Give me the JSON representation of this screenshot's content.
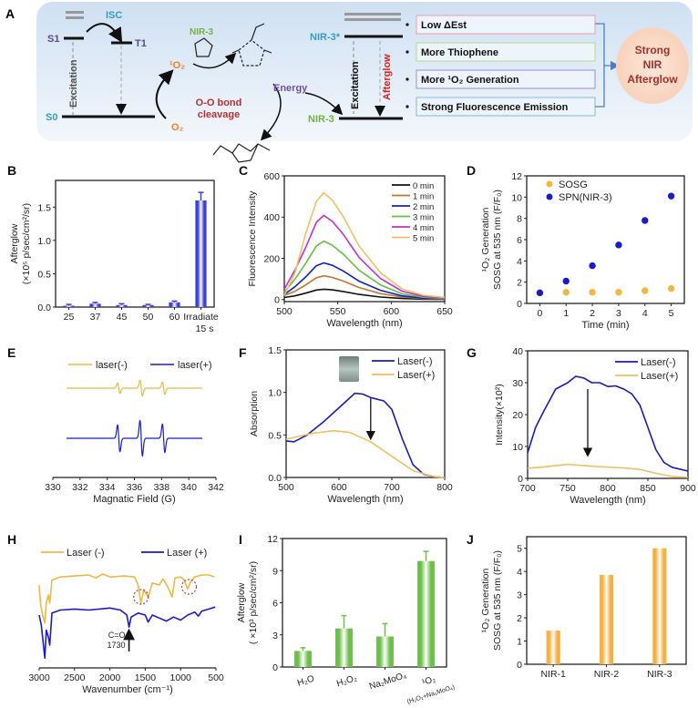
{
  "panel_a": {
    "label": "A",
    "s1": "S1",
    "t1": "T1",
    "s0": "S0",
    "isc": "ISC",
    "excitation": "Excitation",
    "nir3_top": "NIR-3",
    "singlet_oxygen": "¹O₂",
    "oxygen": "O₂",
    "oo_cleavage_line1": "O-O bond",
    "oo_cleavage_line2": "cleavage",
    "energy": "Energy",
    "nir3_excited": "NIR-3*",
    "nir3_ground": "NIR-3",
    "excitation2": "Excitation",
    "afterglow": "Afterglow",
    "features": [
      "Low ΔEst",
      "More Thiophene",
      "More ¹O₂ Generation",
      "Strong Fluorescence Emission"
    ],
    "feature_colors": [
      "#e8a0a8",
      "#b8d890",
      "#9a90c8",
      "#80b8d8"
    ],
    "result": [
      "Strong",
      "NIR",
      "Afterglow"
    ]
  },
  "chart_data": [
    {
      "panel": "B",
      "type": "bar",
      "categories": [
        "25",
        "37",
        "45",
        "50",
        "60",
        "Irradiate"
      ],
      "category_sublabels": [
        "",
        "",
        "",
        "",
        "",
        "15 s"
      ],
      "values": [
        0.02,
        0.05,
        0.03,
        0.03,
        0.07,
        1.6
      ],
      "errors": [
        0.02,
        0.02,
        0.02,
        0.01,
        0.02,
        0.12
      ],
      "ylabel": [
        "Afterglow",
        "(×10⁵ p/sec/cm²/sr)"
      ],
      "xlabel": "",
      "ylim": [
        0,
        1.9
      ],
      "yticks": [
        0.0,
        0.5,
        1.0,
        1.5
      ],
      "ytick_labels": [
        "0.0",
        "0.5",
        "1.0",
        "1.5"
      ],
      "color": "#3c3ce0"
    },
    {
      "panel": "C",
      "type": "line",
      "x": [
        500,
        510,
        520,
        530,
        537,
        545,
        555,
        570,
        590,
        610,
        630,
        650
      ],
      "series": [
        {
          "name": "0 min",
          "color": "#111111",
          "values": [
            10,
            18,
            31,
            46,
            50,
            47,
            39,
            25,
            12,
            5,
            2,
            1
          ]
        },
        {
          "name": "1 min",
          "color": "#c07830",
          "values": [
            20,
            40,
            71,
            106,
            115,
            107,
            90,
            58,
            29,
            12,
            5,
            2
          ]
        },
        {
          "name": "2 min",
          "color": "#1020c8",
          "values": [
            25,
            62,
            110,
            164,
            178,
            166,
            139,
            89,
            45,
            18,
            7,
            4
          ]
        },
        {
          "name": "3 min",
          "color": "#60c040",
          "values": [
            35,
            99,
            175,
            260,
            283,
            263,
            221,
            142,
            71,
            28,
            11,
            6
          ]
        },
        {
          "name": "4 min",
          "color": "#c030d0",
          "values": [
            50,
            143,
            253,
            375,
            408,
            379,
            318,
            204,
            102,
            41,
            16,
            8
          ]
        },
        {
          "name": "5 min",
          "color": "#f0c060",
          "values": [
            20,
            130,
            320,
            476,
            518,
            482,
            404,
            259,
            130,
            52,
            21,
            10
          ]
        }
      ],
      "xlabel": "Wavelength (nm)",
      "ylabel": [
        "Fluorescence Intensity"
      ],
      "xlim": [
        500,
        650
      ],
      "ylim": [
        -10,
        600
      ],
      "xticks": [
        500,
        550,
        600,
        650
      ],
      "yticks": [
        0,
        200,
        400,
        600
      ],
      "legend": "top-right"
    },
    {
      "panel": "D",
      "type": "scatter",
      "x": [
        0,
        1,
        2,
        3,
        4,
        5
      ],
      "series": [
        {
          "name": "SOSG",
          "color": "#f0b840",
          "values": [
            1.0,
            1.05,
            1.05,
            1.05,
            1.2,
            1.4
          ]
        },
        {
          "name": "SPN(NIR-3)",
          "color": "#1a1ad0",
          "values": [
            1.0,
            2.1,
            3.55,
            5.5,
            7.8,
            10.1
          ]
        }
      ],
      "xlabel": "Time (min)",
      "ylabel": [
        "¹O₂ Generation",
        "SOSG at 535 nm (F/F₀)"
      ],
      "xlim": [
        -0.5,
        5.5
      ],
      "ylim": [
        0,
        12
      ],
      "xticks": [
        0,
        1,
        2,
        3,
        4,
        5
      ],
      "yticks": [
        0,
        2,
        4,
        6,
        8,
        10,
        12
      ],
      "legend": "top-left"
    },
    {
      "panel": "E",
      "type": "line",
      "peaks_G": [
        334.85,
        336.5,
        338.15
      ],
      "series": [
        {
          "name": "laser(-)",
          "color": "#f0b840",
          "amplitudes": [
            0.6,
            0.9,
            0.7
          ]
        },
        {
          "name": "laser(+)",
          "color": "#1a1ad0",
          "amplitudes": [
            1.5,
            2.0,
            1.6
          ]
        }
      ],
      "xlabel": "Magnatic Field (G)",
      "xlim": [
        330,
        342
      ],
      "xticks": [
        330,
        332,
        334,
        336,
        338,
        340,
        342
      ],
      "legend": "top"
    },
    {
      "panel": "F",
      "type": "line",
      "series": [
        {
          "name": "Laser(-)",
          "color": "#1a1ab8",
          "points": [
            [
              500,
              0.43
            ],
            [
              515,
              0.42
            ],
            [
              540,
              0.5
            ],
            [
              570,
              0.65
            ],
            [
              600,
              0.82
            ],
            [
              630,
              0.99
            ],
            [
              645,
              0.98
            ],
            [
              660,
              0.94
            ],
            [
              685,
              0.9
            ],
            [
              700,
              0.8
            ],
            [
              720,
              0.45
            ],
            [
              740,
              0.15
            ],
            [
              760,
              0.04
            ],
            [
              780,
              0.01
            ],
            [
              800,
              0
            ]
          ]
        },
        {
          "name": "Laser(+)",
          "color": "#f0c060",
          "points": [
            [
              500,
              0.45
            ],
            [
              550,
              0.52
            ],
            [
              590,
              0.55
            ],
            [
              620,
              0.53
            ],
            [
              660,
              0.42
            ],
            [
              700,
              0.25
            ],
            [
              740,
              0.08
            ],
            [
              780,
              0.01
            ],
            [
              800,
              0
            ]
          ]
        }
      ],
      "arrow": {
        "x": 660,
        "from": 0.93,
        "to": 0.45
      },
      "xlabel": "Wavelength (nm)",
      "ylabel": [
        "Absorption"
      ],
      "xlim": [
        500,
        800
      ],
      "ylim": [
        0,
        1.5
      ],
      "xticks": [
        500,
        600,
        700,
        800
      ],
      "yticks": [
        0.0,
        0.5,
        1.0,
        1.5
      ],
      "ytick_labels": [
        "0.0",
        "0.5",
        "1.0",
        "1.5"
      ],
      "legend": "top-right"
    },
    {
      "panel": "G",
      "type": "line",
      "series": [
        {
          "name": "Laser(-)",
          "color": "#1a1ab8",
          "points": [
            [
              700,
              8
            ],
            [
              710,
              16
            ],
            [
              720,
              21
            ],
            [
              735,
              28
            ],
            [
              750,
              30
            ],
            [
              760,
              32
            ],
            [
              770,
              31.5
            ],
            [
              780,
              30
            ],
            [
              790,
              30
            ],
            [
              800,
              28.8
            ],
            [
              810,
              29
            ],
            [
              820,
              28
            ],
            [
              830,
              26.5
            ],
            [
              840,
              23
            ],
            [
              850,
              16
            ],
            [
              860,
              9
            ],
            [
              870,
              5
            ],
            [
              880,
              3.5
            ],
            [
              900,
              2.3
            ]
          ]
        },
        {
          "name": "Laser(+)",
          "color": "#f0c060",
          "points": [
            [
              700,
              3.2
            ],
            [
              720,
              3.6
            ],
            [
              750,
              4.4
            ],
            [
              780,
              3.8
            ],
            [
              820,
              3.3
            ],
            [
              840,
              2.8
            ],
            [
              860,
              1.6
            ],
            [
              880,
              0.6
            ],
            [
              900,
              0.3
            ]
          ]
        }
      ],
      "arrow": {
        "x": 775,
        "from": 28,
        "to": 7
      },
      "xlabel": "Wavelength (nm)",
      "ylabel": [
        "Intensity(×10²)"
      ],
      "xlim": [
        700,
        900
      ],
      "ylim": [
        0,
        40
      ],
      "xticks": [
        700,
        750,
        800,
        850,
        900
      ],
      "yticks": [
        0,
        10,
        20,
        30,
        40
      ],
      "legend": "top-right"
    },
    {
      "panel": "H",
      "type": "line",
      "series": [
        {
          "name": "Laser (-)",
          "color": "#f0b840",
          "points": [
            [
              3000,
              0.8
            ],
            [
              2980,
              0.6
            ],
            [
              2950,
              0.5
            ],
            [
              2920,
              0.42
            ],
            [
              2900,
              0.62
            ],
            [
              2870,
              0.7
            ],
            [
              2850,
              0.62
            ],
            [
              2820,
              0.85
            ],
            [
              2700,
              0.88
            ],
            [
              2500,
              0.89
            ],
            [
              2300,
              0.9
            ],
            [
              2200,
              0.87
            ],
            [
              2100,
              0.91
            ],
            [
              2000,
              0.88
            ],
            [
              1800,
              0.89
            ],
            [
              1650,
              0.88
            ],
            [
              1600,
              0.8
            ],
            [
              1560,
              0.62
            ],
            [
              1520,
              0.75
            ],
            [
              1460,
              0.68
            ],
            [
              1400,
              0.82
            ],
            [
              1300,
              0.8
            ],
            [
              1250,
              0.86
            ],
            [
              1180,
              0.78
            ],
            [
              1120,
              0.68
            ],
            [
              1080,
              0.87
            ],
            [
              1000,
              0.88
            ],
            [
              950,
              0.85
            ],
            [
              900,
              0.76
            ],
            [
              860,
              0.83
            ],
            [
              800,
              0.88
            ],
            [
              700,
              0.9
            ],
            [
              600,
              0.9
            ],
            [
              520,
              0.88
            ]
          ]
        },
        {
          "name": "Laser (+)",
          "color": "#1a1ad0",
          "points": [
            [
              3000,
              0.5
            ],
            [
              2970,
              0.4
            ],
            [
              2940,
              0.2
            ],
            [
              2920,
              0.07
            ],
            [
              2900,
              0.35
            ],
            [
              2870,
              0.28
            ],
            [
              2850,
              0.2
            ],
            [
              2820,
              0.52
            ],
            [
              2700,
              0.55
            ],
            [
              2500,
              0.56
            ],
            [
              2300,
              0.55
            ],
            [
              2000,
              0.57
            ],
            [
              1850,
              0.55
            ],
            [
              1760,
              0.5
            ],
            [
              1730,
              0.38
            ],
            [
              1700,
              0.48
            ],
            [
              1600,
              0.52
            ],
            [
              1500,
              0.5
            ],
            [
              1460,
              0.43
            ],
            [
              1400,
              0.5
            ],
            [
              1300,
              0.47
            ],
            [
              1200,
              0.44
            ],
            [
              1100,
              0.48
            ],
            [
              1000,
              0.45
            ],
            [
              900,
              0.5
            ],
            [
              800,
              0.53
            ],
            [
              750,
              0.49
            ],
            [
              700,
              0.54
            ],
            [
              600,
              0.56
            ],
            [
              510,
              0.58
            ]
          ]
        }
      ],
      "annotation": {
        "line1": "C=O",
        "line2": "1730",
        "x": 1730
      },
      "highlighted_peaks": [
        1560,
        880
      ],
      "xlabel": "Wavenumber (cm⁻¹)",
      "xlim": [
        3000,
        500
      ],
      "xticks": [
        3000,
        2500,
        2000,
        1500,
        1000,
        500
      ],
      "legend": "top"
    },
    {
      "panel": "I",
      "type": "bar",
      "categories": [
        "H₂O",
        "H₂O₂",
        "Na₂MoO₄",
        "¹O₂"
      ],
      "category_sublabels": [
        "",
        "",
        "",
        "(H₂O₂+Na₂MoO₄)"
      ],
      "values": [
        1.5,
        3.6,
        2.85,
        9.9
      ],
      "errors": [
        0.3,
        1.2,
        1.2,
        0.9
      ],
      "ylabel": [
        "Afterglow",
        "( ×10³ p/sec/cm²/sr)"
      ],
      "ylim": [
        0,
        12
      ],
      "yticks": [
        0,
        3,
        6,
        9,
        12
      ],
      "color": "#6cc04a"
    },
    {
      "panel": "J",
      "type": "bar",
      "categories": [
        "NIR-1",
        "NIR-2",
        "NIR-3"
      ],
      "category_sublabels": [
        "",
        "",
        ""
      ],
      "values": [
        1.45,
        3.85,
        5.0
      ],
      "errors": [
        0,
        0,
        0
      ],
      "ylabel": [
        "¹O₂ Generation",
        "SOSG at 535 nm (F/F₀)"
      ],
      "ylim": [
        0,
        5.5
      ],
      "yticks": [
        0,
        1,
        2,
        3,
        4,
        5
      ],
      "color": "#f5b040"
    }
  ]
}
